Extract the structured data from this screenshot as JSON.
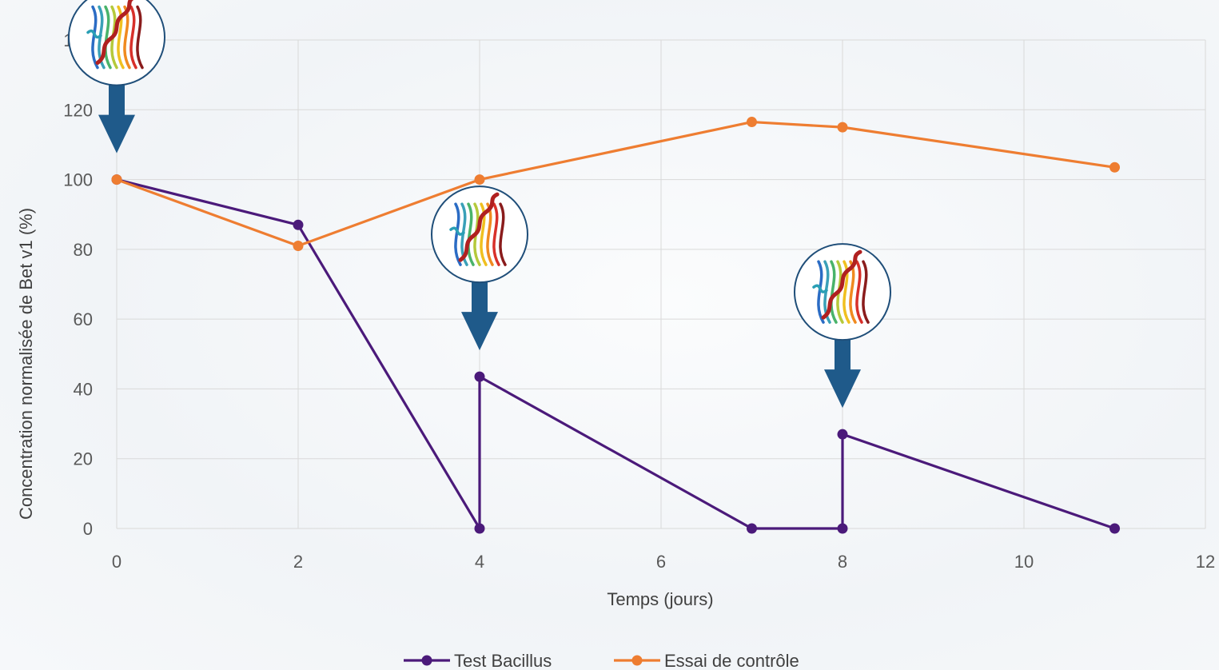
{
  "chart_data": {
    "type": "line",
    "title": "",
    "xlabel": "Temps (jours)",
    "ylabel": "Concentration normalisée de Bet v1 (%)",
    "xlim": [
      0,
      12
    ],
    "ylim": [
      0,
      140
    ],
    "xticks": [
      0,
      2,
      4,
      6,
      8,
      10,
      12
    ],
    "yticks": [
      0,
      20,
      40,
      60,
      80,
      100,
      120,
      140
    ],
    "grid": true,
    "legend_position": "bottom",
    "series": [
      {
        "name": "Test Bacillus",
        "color": "#4b1a7a",
        "points": [
          [
            0,
            100
          ],
          [
            2,
            87
          ],
          [
            4,
            0
          ],
          [
            4,
            43.5
          ],
          [
            7,
            0
          ],
          [
            8,
            0
          ],
          [
            8,
            27
          ],
          [
            11,
            0
          ]
        ]
      },
      {
        "name": "Essai de contrôle",
        "color": "#ee7d31",
        "points": [
          [
            0,
            100
          ],
          [
            2,
            81
          ],
          [
            4,
            100
          ],
          [
            7,
            116.5
          ],
          [
            8,
            115
          ],
          [
            11,
            103.5
          ]
        ]
      }
    ],
    "annotations": [
      {
        "type": "protein-addition-arrow",
        "x": 0,
        "icon": "protein-structure-icon",
        "color": "#1f5a8a"
      },
      {
        "type": "protein-addition-arrow",
        "x": 4,
        "icon": "protein-structure-icon",
        "color": "#1f5a8a"
      },
      {
        "type": "protein-addition-arrow",
        "x": 8,
        "icon": "protein-structure-icon",
        "color": "#1f5a8a"
      }
    ]
  }
}
